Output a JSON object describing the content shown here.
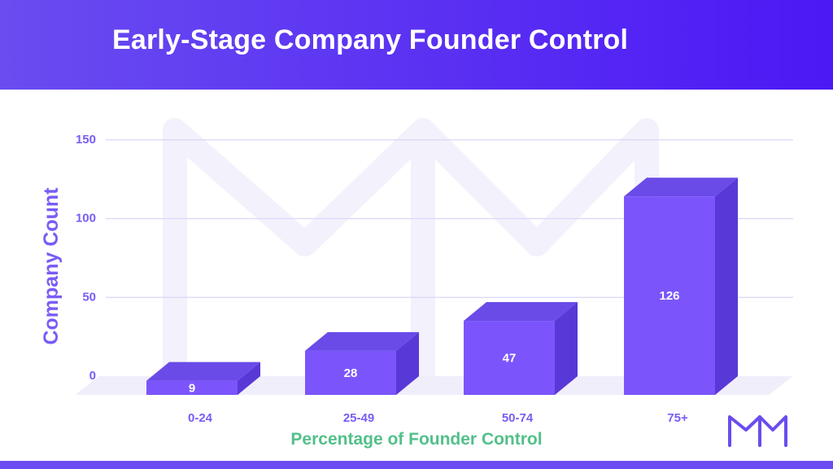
{
  "colors": {
    "header_start": "#6a4cf0",
    "header_end": "#4c18f5",
    "bar_front": "#7b55fb",
    "bar_top": "#6a4be8",
    "bar_side": "#5938d8",
    "axis_text": "#7a5cf5",
    "xlabel": "#52c08a",
    "grid": "#dcd6f5",
    "floor": "#f1eefb",
    "watermark": "#f3f1fc"
  },
  "icons": {
    "watermark": "crown-logo-icon",
    "logo": "crown-logo-icon"
  },
  "chart_data": {
    "type": "bar",
    "title": "Early-Stage Company Founder Control",
    "xlabel": "Percentage of Founder Control",
    "ylabel": "Company Count",
    "categories": [
      "0-24",
      "25-49",
      "50-74",
      "75+"
    ],
    "values": [
      9,
      28,
      47,
      126
    ],
    "yticks": [
      0,
      50,
      100,
      150
    ],
    "ylim": [
      0,
      150
    ],
    "grid": true,
    "style": "3d"
  }
}
